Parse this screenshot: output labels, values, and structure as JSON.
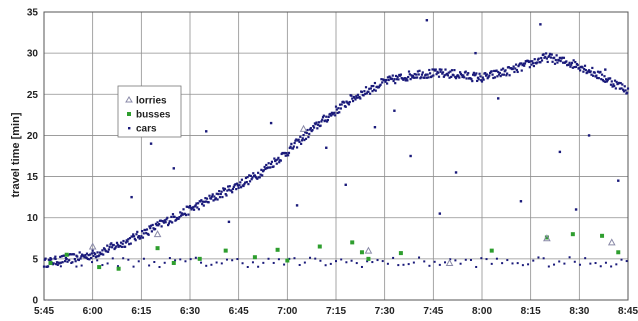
{
  "chart_data": {
    "type": "scatter",
    "title": "",
    "xlabel": "",
    "ylabel": "travel time  [min]",
    "x_tick_labels": [
      "5:45",
      "6:00",
      "6:15",
      "6:30",
      "6:45",
      "7:00",
      "7:15",
      "7:30",
      "7:45",
      "8:00",
      "8:15",
      "8:30",
      "8:45"
    ],
    "xlim": [
      "5:45",
      "8:45"
    ],
    "ylim": [
      0,
      35
    ],
    "y_ticks": [
      0,
      5,
      10,
      15,
      20,
      25,
      30,
      35
    ],
    "grid": true,
    "legend_position": "left",
    "colors": {
      "cars": "#1a1a7a",
      "busses": "#2e9e2e",
      "lorries": "#8a8aa8",
      "grid": "#8f8f8f",
      "frame": "#555555"
    },
    "series": [
      {
        "name": "lorries",
        "marker": "triangle",
        "x": [
          "6:00",
          "6:20",
          "7:05",
          "7:25",
          "7:50",
          "8:20",
          "8:40"
        ],
        "y": [
          6.5,
          8.0,
          20.8,
          6.0,
          4.5,
          7.5,
          7.0
        ]
      },
      {
        "name": "busses",
        "marker": "square",
        "x": [
          "5:47",
          "5:52",
          "6:02",
          "6:08",
          "6:20",
          "6:25",
          "6:33",
          "6:41",
          "6:50",
          "6:57",
          "7:00",
          "7:10",
          "7:20",
          "7:23",
          "7:25",
          "7:35",
          "8:03",
          "8:20",
          "8:28",
          "8:37",
          "8:42"
        ],
        "y": [
          4.5,
          5.5,
          4.0,
          3.8,
          6.3,
          4.5,
          5.0,
          6.0,
          5.2,
          6.1,
          4.8,
          6.5,
          7.0,
          5.8,
          5.0,
          5.7,
          6.0,
          7.6,
          8.0,
          7.8,
          5.8
        ]
      },
      {
        "name": "cars",
        "marker": "dot",
        "trend_x": [
          "5:45",
          "6:00",
          "6:10",
          "6:20",
          "6:30",
          "6:40",
          "6:50",
          "7:00",
          "7:10",
          "7:20",
          "7:30",
          "7:40",
          "7:50",
          "8:00",
          "8:10",
          "8:20",
          "8:30",
          "8:40",
          "8:45"
        ],
        "trend_y": [
          4.5,
          5.5,
          7.0,
          9.0,
          11.0,
          13.0,
          15.0,
          18.0,
          21.5,
          24.5,
          26.5,
          27.5,
          27.5,
          27.0,
          28.0,
          29.5,
          28.5,
          26.5,
          25.5
        ],
        "outliers_x": [
          "6:12",
          "6:18",
          "6:25",
          "6:35",
          "6:42",
          "6:55",
          "7:03",
          "7:12",
          "7:18",
          "7:27",
          "7:33",
          "7:38",
          "7:43",
          "7:47",
          "7:52",
          "7:58",
          "8:05",
          "8:12",
          "8:18",
          "8:24",
          "8:29",
          "8:33",
          "8:38",
          "8:42"
        ],
        "outliers_y": [
          12.5,
          19.0,
          16.0,
          20.5,
          9.5,
          21.5,
          11.5,
          18.5,
          14.0,
          21.0,
          23.0,
          17.5,
          34.0,
          10.5,
          15.5,
          30.0,
          24.5,
          12.0,
          33.5,
          18.0,
          11.0,
          20.0,
          28.0,
          14.5
        ]
      }
    ]
  }
}
